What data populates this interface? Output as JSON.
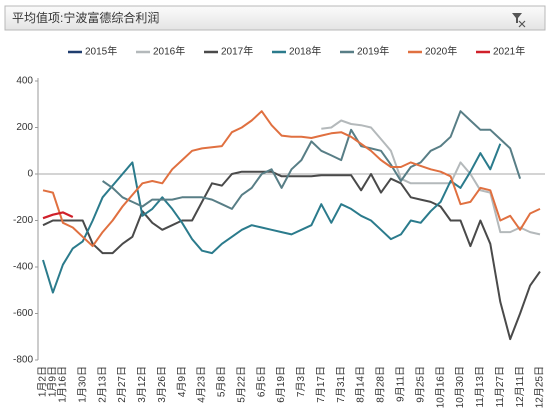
{
  "header": {
    "title": "平均值项:宁波富德综合利润"
  },
  "chart_data": {
    "type": "line",
    "categories": [
      "1月2日",
      "1月9日",
      "1月16日",
      null,
      "1月30日",
      null,
      "2月13日",
      null,
      "2月27日",
      null,
      "3月12日",
      null,
      "3月26日",
      null,
      "4月9日",
      null,
      "4月23日",
      null,
      "5月8日",
      null,
      "5月22日",
      null,
      "6月5日",
      null,
      "6月19日",
      null,
      "7月3日",
      null,
      "7月17日",
      null,
      "7月31日",
      null,
      "8月14日",
      null,
      "8月28日",
      null,
      "9月11日",
      null,
      "9月25日",
      null,
      "10月16日",
      null,
      "10月30日",
      null,
      "11月13日",
      null,
      "11月27日",
      null,
      "12月11日",
      null,
      "12月25日"
    ],
    "series": [
      {
        "name": "2015年",
        "color": "#1f3d6e",
        "values": [
          null,
          null,
          null,
          null,
          null,
          null,
          null,
          null,
          null,
          null,
          null,
          null,
          null,
          null,
          null,
          null,
          null,
          null,
          null,
          null,
          null,
          null,
          null,
          null,
          null,
          null,
          null,
          null,
          null,
          null,
          null,
          null,
          null,
          null,
          null,
          null,
          null,
          null,
          null,
          null,
          null,
          null,
          null,
          null,
          null,
          null,
          null,
          null,
          null,
          null,
          null
        ]
      },
      {
        "name": "2016年",
        "color": "#b4b9bb",
        "values": [
          null,
          null,
          null,
          null,
          null,
          null,
          null,
          null,
          null,
          null,
          null,
          null,
          null,
          null,
          null,
          null,
          null,
          null,
          null,
          null,
          null,
          null,
          null,
          null,
          null,
          null,
          null,
          null,
          195,
          200,
          230,
          215,
          210,
          200,
          150,
          100,
          -20,
          -40,
          -40,
          -40,
          -40,
          -40,
          50,
          0,
          -70,
          -80,
          -250,
          -250,
          -230,
          -250,
          -260
        ]
      },
      {
        "name": "2017年",
        "color": "#4a4a4a",
        "values": [
          -220,
          -200,
          -200,
          -200,
          -200,
          -300,
          -340,
          -340,
          -300,
          -270,
          -160,
          -210,
          -240,
          -220,
          -200,
          -200,
          -120,
          -40,
          -50,
          0,
          10,
          10,
          10,
          10,
          -10,
          -10,
          -10,
          -10,
          -5,
          -5,
          -5,
          -5,
          -70,
          0,
          -80,
          -20,
          -40,
          -100,
          -110,
          -120,
          -140,
          -200,
          -200,
          -310,
          -200,
          -300,
          -550,
          -710,
          -600,
          -480,
          -420
        ]
      },
      {
        "name": "2018年",
        "color": "#2b7b8c",
        "values": [
          -370,
          -510,
          -390,
          -320,
          -290,
          -200,
          -100,
          -50,
          0,
          50,
          -180,
          -150,
          -100,
          -150,
          -210,
          -280,
          -330,
          -340,
          -300,
          -270,
          -240,
          -220,
          -230,
          -240,
          -250,
          -260,
          -240,
          -220,
          -130,
          -210,
          -130,
          -150,
          -180,
          -200,
          -240,
          -280,
          -260,
          -200,
          -210,
          -160,
          -120,
          -30,
          -60,
          10,
          90,
          20,
          130,
          null,
          null,
          null,
          null
        ]
      },
      {
        "name": "2019年",
        "color": "#587e86",
        "values": [
          null,
          null,
          null,
          null,
          null,
          null,
          -30,
          -60,
          -100,
          -120,
          -140,
          -110,
          -110,
          -110,
          -100,
          -100,
          -100,
          -110,
          -130,
          -150,
          -90,
          -60,
          0,
          20,
          -60,
          20,
          60,
          140,
          100,
          80,
          60,
          190,
          120,
          110,
          100,
          40,
          -30,
          30,
          50,
          100,
          120,
          160,
          270,
          230,
          190,
          190,
          150,
          110,
          -20,
          null,
          null
        ]
      },
      {
        "name": "2020年",
        "color": "#e07040",
        "values": [
          -70,
          -80,
          -210,
          -230,
          -270,
          -310,
          -250,
          -200,
          -140,
          -90,
          -40,
          -30,
          -40,
          20,
          60,
          100,
          110,
          115,
          120,
          180,
          200,
          230,
          270,
          210,
          165,
          160,
          160,
          155,
          165,
          175,
          180,
          160,
          130,
          100,
          60,
          30,
          30,
          50,
          35,
          20,
          10,
          -10,
          -130,
          -120,
          -60,
          -70,
          -200,
          -180,
          -240,
          -170,
          -150
        ]
      },
      {
        "name": "2021年",
        "color": "#d0202a",
        "values": [
          -190,
          -175,
          -165,
          -185,
          null,
          null,
          null,
          null,
          null,
          null,
          null,
          null,
          null,
          null,
          null,
          null,
          null,
          null,
          null,
          null,
          null,
          null,
          null,
          null,
          null,
          null,
          null,
          null,
          null,
          null,
          null,
          null,
          null,
          null,
          null,
          null,
          null,
          null,
          null,
          null,
          null,
          null,
          null,
          null,
          null,
          null,
          null,
          null,
          null,
          null,
          null
        ]
      }
    ],
    "ylim": [
      -800,
      400
    ],
    "yticks": [
      -800,
      -600,
      -400,
      -200,
      0,
      200,
      400
    ],
    "grid": false
  }
}
